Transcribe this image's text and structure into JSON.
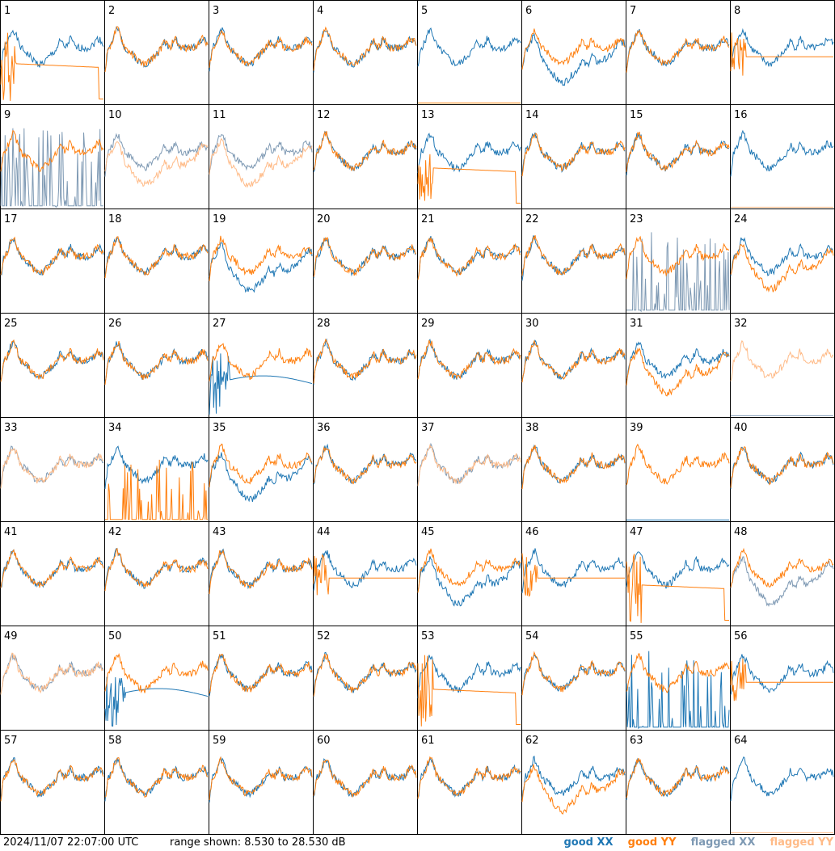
{
  "footer": {
    "timestamp": "2024/11/07 22:07:00 UTC",
    "range": "range shown: 8.530 to 28.530 dB"
  },
  "legend": [
    {
      "label": "good XX",
      "color": "#1f77b4"
    },
    {
      "label": "good YY",
      "color": "#ff7f0e"
    },
    {
      "label": "flagged XX",
      "color": "#7f9ab4"
    },
    {
      "label": "flagged YY",
      "color": "#ffbb88"
    }
  ],
  "chart_data": {
    "type": "line",
    "grid": "8x8 small multiples",
    "range_db": [
      8.53,
      28.53
    ],
    "panels": [
      {
        "id": "1",
        "xx": "good",
        "yy": "good",
        "shape": "bad_yy"
      },
      {
        "id": "2",
        "xx": "good",
        "yy": "good",
        "shape": "normal"
      },
      {
        "id": "3",
        "xx": "good",
        "yy": "good",
        "shape": "normal"
      },
      {
        "id": "4",
        "xx": "good",
        "yy": "good",
        "shape": "normal"
      },
      {
        "id": "5",
        "xx": "good",
        "yy": "good",
        "shape": "no_yy"
      },
      {
        "id": "6",
        "xx": "good",
        "yy": "good",
        "shape": "low_xx"
      },
      {
        "id": "7",
        "xx": "good",
        "yy": "good",
        "shape": "normal"
      },
      {
        "id": "8",
        "xx": "good",
        "yy": "good",
        "shape": "flat_yy"
      },
      {
        "id": "9",
        "xx": "flagged",
        "yy": "good",
        "shape": "spiky_xx"
      },
      {
        "id": "10",
        "xx": "flagged",
        "yy": "flagged",
        "shape": "low_yy"
      },
      {
        "id": "11",
        "xx": "flagged",
        "yy": "flagged",
        "shape": "low_yy"
      },
      {
        "id": "12",
        "xx": "good",
        "yy": "good",
        "shape": "normal"
      },
      {
        "id": "13",
        "xx": "good",
        "yy": "good",
        "shape": "bad_yy"
      },
      {
        "id": "14",
        "xx": "good",
        "yy": "good",
        "shape": "normal"
      },
      {
        "id": "15",
        "xx": "good",
        "yy": "good",
        "shape": "normal"
      },
      {
        "id": "16",
        "xx": "good",
        "yy": "flagged",
        "shape": "no_yy"
      },
      {
        "id": "17",
        "xx": "good",
        "yy": "good",
        "shape": "normal"
      },
      {
        "id": "18",
        "xx": "good",
        "yy": "good",
        "shape": "normal"
      },
      {
        "id": "19",
        "xx": "good",
        "yy": "good",
        "shape": "low_xx"
      },
      {
        "id": "20",
        "xx": "good",
        "yy": "good",
        "shape": "normal"
      },
      {
        "id": "21",
        "xx": "good",
        "yy": "good",
        "shape": "normal"
      },
      {
        "id": "22",
        "xx": "good",
        "yy": "good",
        "shape": "normal"
      },
      {
        "id": "23",
        "xx": "flagged",
        "yy": "good",
        "shape": "spiky_xx"
      },
      {
        "id": "24",
        "xx": "good",
        "yy": "good",
        "shape": "low_yy"
      },
      {
        "id": "25",
        "xx": "good",
        "yy": "good",
        "shape": "normal"
      },
      {
        "id": "26",
        "xx": "good",
        "yy": "good",
        "shape": "normal"
      },
      {
        "id": "27",
        "xx": "good",
        "yy": "good",
        "shape": "bad_xx"
      },
      {
        "id": "28",
        "xx": "good",
        "yy": "good",
        "shape": "normal"
      },
      {
        "id": "29",
        "xx": "good",
        "yy": "good",
        "shape": "normal"
      },
      {
        "id": "30",
        "xx": "good",
        "yy": "good",
        "shape": "normal"
      },
      {
        "id": "31",
        "xx": "good",
        "yy": "good",
        "shape": "low_yy"
      },
      {
        "id": "32",
        "xx": "flagged",
        "yy": "flagged",
        "shape": "no_xx"
      },
      {
        "id": "33",
        "xx": "flagged",
        "yy": "flagged",
        "shape": "normal"
      },
      {
        "id": "34",
        "xx": "good",
        "yy": "good",
        "shape": "spiky_yy"
      },
      {
        "id": "35",
        "xx": "good",
        "yy": "good",
        "shape": "low_xx"
      },
      {
        "id": "36",
        "xx": "good",
        "yy": "good",
        "shape": "normal"
      },
      {
        "id": "37",
        "xx": "flagged",
        "yy": "flagged",
        "shape": "normal"
      },
      {
        "id": "38",
        "xx": "good",
        "yy": "good",
        "shape": "normal"
      },
      {
        "id": "39",
        "xx": "good",
        "yy": "good",
        "shape": "no_xx"
      },
      {
        "id": "40",
        "xx": "good",
        "yy": "good",
        "shape": "normal"
      },
      {
        "id": "41",
        "xx": "good",
        "yy": "good",
        "shape": "normal"
      },
      {
        "id": "42",
        "xx": "good",
        "yy": "good",
        "shape": "normal"
      },
      {
        "id": "43",
        "xx": "good",
        "yy": "good",
        "shape": "normal"
      },
      {
        "id": "44",
        "xx": "good",
        "yy": "good",
        "shape": "flat_yy"
      },
      {
        "id": "45",
        "xx": "good",
        "yy": "good",
        "shape": "low_xx"
      },
      {
        "id": "46",
        "xx": "good",
        "yy": "good",
        "shape": "flat_yy"
      },
      {
        "id": "47",
        "xx": "good",
        "yy": "good",
        "shape": "bad_yy"
      },
      {
        "id": "48",
        "xx": "flagged",
        "yy": "good",
        "shape": "low_xx"
      },
      {
        "id": "49",
        "xx": "flagged",
        "yy": "flagged",
        "shape": "normal"
      },
      {
        "id": "50",
        "xx": "good",
        "yy": "good",
        "shape": "bad_xx"
      },
      {
        "id": "51",
        "xx": "good",
        "yy": "good",
        "shape": "normal"
      },
      {
        "id": "52",
        "xx": "good",
        "yy": "good",
        "shape": "normal"
      },
      {
        "id": "53",
        "xx": "good",
        "yy": "good",
        "shape": "bad_yy"
      },
      {
        "id": "54",
        "xx": "good",
        "yy": "good",
        "shape": "normal"
      },
      {
        "id": "55",
        "xx": "good",
        "yy": "good",
        "shape": "spiky_xx"
      },
      {
        "id": "56",
        "xx": "good",
        "yy": "good",
        "shape": "flat_yy"
      },
      {
        "id": "57",
        "xx": "good",
        "yy": "good",
        "shape": "normal"
      },
      {
        "id": "58",
        "xx": "good",
        "yy": "good",
        "shape": "normal"
      },
      {
        "id": "59",
        "xx": "good",
        "yy": "good",
        "shape": "normal"
      },
      {
        "id": "60",
        "xx": "good",
        "yy": "good",
        "shape": "normal"
      },
      {
        "id": "61",
        "xx": "good",
        "yy": "good",
        "shape": "normal"
      },
      {
        "id": "62",
        "xx": "good",
        "yy": "good",
        "shape": "low_yy"
      },
      {
        "id": "63",
        "xx": "good",
        "yy": "good",
        "shape": "normal"
      },
      {
        "id": "64",
        "xx": "good",
        "yy": "flagged",
        "shape": "no_yy"
      }
    ]
  }
}
